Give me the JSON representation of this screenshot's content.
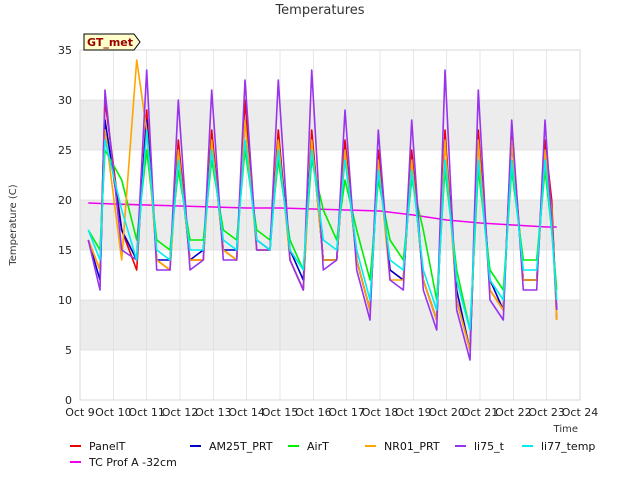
{
  "chart_data": {
    "type": "line",
    "title": "Temperatures",
    "xlabel": "Time",
    "ylabel": "Temperature (C)",
    "badge": "GT_met",
    "xlim": [
      9,
      24
    ],
    "ylim": [
      0,
      35
    ],
    "x_ticks": [
      {
        "v": 9,
        "label": "Oct 9"
      },
      {
        "v": 10,
        "label": "Oct 10"
      },
      {
        "v": 11,
        "label": "Oct 11"
      },
      {
        "v": 12,
        "label": "Oct 12"
      },
      {
        "v": 13,
        "label": "Oct 13"
      },
      {
        "v": 14,
        "label": "Oct 14"
      },
      {
        "v": 15,
        "label": "Oct 15"
      },
      {
        "v": 16,
        "label": "Oct 16"
      },
      {
        "v": 17,
        "label": "Oct 17"
      },
      {
        "v": 18,
        "label": "Oct 18"
      },
      {
        "v": 19,
        "label": "Oct 19"
      },
      {
        "v": 20,
        "label": "Oct 20"
      },
      {
        "v": 21,
        "label": "Oct 21"
      },
      {
        "v": 22,
        "label": "Oct 22"
      },
      {
        "v": 23,
        "label": "Oct 23"
      },
      {
        "v": 24,
        "label": "Oct 24"
      }
    ],
    "y_ticks": [
      0,
      5,
      10,
      15,
      20,
      25,
      30,
      35
    ],
    "shaded_bands": [
      [
        5,
        10
      ],
      [
        15,
        20
      ],
      [
        25,
        30
      ]
    ],
    "series": [
      {
        "name": "PanelT",
        "color": "#ee0000",
        "t": [
          9.25,
          9.6,
          9.75,
          10.25,
          10.7,
          11.0,
          11.3,
          11.7,
          11.95,
          12.3,
          12.7,
          12.95,
          13.3,
          13.7,
          13.95,
          14.3,
          14.7,
          14.95,
          15.3,
          15.7,
          15.95,
          16.3,
          16.7,
          16.95,
          17.3,
          17.7,
          17.95,
          18.3,
          18.7,
          18.95,
          19.3,
          19.7,
          19.95,
          20.3,
          20.7,
          20.95,
          21.3,
          21.7,
          21.95,
          22.3,
          22.7,
          22.95,
          23.15,
          23.3
        ],
        "y": [
          16,
          13,
          30,
          17,
          13,
          29,
          14,
          13,
          26,
          14,
          14,
          27,
          15,
          14,
          30,
          15,
          15,
          27,
          14,
          11,
          27,
          14,
          14,
          26,
          14,
          9,
          25,
          13,
          12,
          25,
          12,
          8,
          27,
          10,
          5,
          27,
          11,
          9,
          27,
          12,
          12,
          26,
          20,
          8
        ]
      },
      {
        "name": "TC Prof A -32cm",
        "color": "#ee00ee",
        "t": [
          9.25,
          10.0,
          11.0,
          12.0,
          13.0,
          14.0,
          15.0,
          16.0,
          17.0,
          18.0,
          19.0,
          20.0,
          21.0,
          22.0,
          23.0,
          23.3
        ],
        "y": [
          19.7,
          19.6,
          19.5,
          19.4,
          19.3,
          19.2,
          19.2,
          19.1,
          19.0,
          18.9,
          18.5,
          18.0,
          17.7,
          17.5,
          17.3,
          17.3
        ]
      },
      {
        "name": "AM25T_PRT",
        "color": "#0000cc",
        "t": [
          9.25,
          9.6,
          9.75,
          10.25,
          10.7,
          11.0,
          11.3,
          11.7,
          11.95,
          12.3,
          12.7,
          12.95,
          13.3,
          13.7,
          13.95,
          14.3,
          14.7,
          14.95,
          15.3,
          15.7,
          15.95,
          16.3,
          16.7,
          16.95,
          17.3,
          17.7,
          17.95,
          18.3,
          18.7,
          18.95,
          19.3,
          19.7,
          19.95,
          20.3,
          20.7,
          20.95,
          21.3,
          21.7,
          21.95,
          22.3,
          22.7,
          22.95,
          23.15,
          23.3
        ],
        "y": [
          16,
          12,
          28,
          17,
          14,
          28,
          14,
          14,
          25,
          14,
          15,
          26,
          15,
          15,
          28,
          16,
          15,
          26,
          15,
          12,
          26,
          14,
          14,
          25,
          14,
          9,
          24,
          13,
          12,
          24,
          12,
          8,
          26,
          11,
          5,
          26,
          12,
          9,
          26,
          12,
          12,
          25,
          19,
          9
        ]
      },
      {
        "name": "AirT",
        "color": "#00ee00",
        "t": [
          9.25,
          9.6,
          9.75,
          10.25,
          10.7,
          11.0,
          11.3,
          11.7,
          11.95,
          12.3,
          12.7,
          12.95,
          13.3,
          13.7,
          13.95,
          14.3,
          14.7,
          14.95,
          15.3,
          15.7,
          15.95,
          16.3,
          16.7,
          16.95,
          17.3,
          17.7,
          17.95,
          18.3,
          18.7,
          18.95,
          19.3,
          19.7,
          19.95,
          20.3,
          20.7,
          20.95,
          21.3,
          21.7,
          21.95,
          22.3,
          22.7,
          22.95,
          23.15,
          23.3
        ],
        "y": [
          17,
          15,
          25,
          22,
          16,
          25,
          16,
          15,
          23,
          16,
          16,
          24,
          17,
          16,
          25,
          17,
          16,
          24,
          16,
          13,
          24,
          19,
          16,
          22,
          17,
          12,
          22,
          16,
          14,
          22,
          17,
          10,
          23,
          13,
          7,
          23,
          13,
          11,
          23,
          14,
          14,
          23,
          17,
          11
        ]
      },
      {
        "name": "NR01_PRT",
        "color": "#ffa500",
        "t": [
          9.25,
          9.6,
          9.75,
          10.25,
          10.7,
          11.0,
          11.3,
          11.7,
          11.95,
          12.3,
          12.7,
          12.95,
          13.3,
          13.7,
          13.95,
          14.3,
          14.7,
          14.95,
          15.3,
          15.7,
          15.95,
          16.3,
          16.7,
          16.95,
          17.3,
          17.7,
          17.95,
          18.3,
          18.7,
          18.95,
          19.3,
          19.7,
          19.95,
          20.3,
          20.7,
          20.95,
          21.3,
          21.7,
          21.95,
          22.3,
          22.7,
          22.95,
          23.15,
          23.3
        ],
        "y": [
          16,
          13,
          27,
          14,
          34,
          27,
          14,
          13,
          25,
          14,
          14,
          26,
          15,
          14,
          28,
          15,
          15,
          26,
          14,
          11,
          26,
          14,
          14,
          25,
          14,
          9,
          24,
          12,
          12,
          24,
          12,
          8,
          26,
          10,
          5,
          26,
          11,
          9,
          26,
          12,
          12,
          25,
          19,
          8
        ]
      },
      {
        "name": "li75_t",
        "color": "#9933ee",
        "t": [
          9.25,
          9.6,
          9.75,
          10.25,
          10.7,
          11.0,
          11.3,
          11.7,
          11.95,
          12.3,
          12.7,
          12.95,
          13.3,
          13.7,
          13.95,
          14.3,
          14.7,
          14.95,
          15.3,
          15.7,
          15.95,
          16.3,
          16.7,
          16.95,
          17.3,
          17.7,
          17.95,
          18.3,
          18.7,
          18.95,
          19.3,
          19.7,
          19.95,
          20.3,
          20.7,
          20.95,
          21.3,
          21.7,
          21.95,
          22.3,
          22.7,
          22.95,
          23.15,
          23.3
        ],
        "y": [
          16,
          11,
          31,
          15,
          14,
          33,
          13,
          13,
          30,
          13,
          14,
          31,
          14,
          14,
          32,
          15,
          15,
          32,
          14,
          11,
          33,
          13,
          14,
          29,
          13,
          8,
          27,
          12,
          11,
          28,
          11,
          7,
          33,
          9,
          4,
          31,
          10,
          8,
          28,
          11,
          11,
          28,
          18,
          9
        ]
      },
      {
        "name": "li77_temp",
        "color": "#00eeee",
        "t": [
          9.25,
          9.6,
          9.75,
          10.25,
          10.7,
          11.0,
          11.3,
          11.7,
          11.95,
          12.3,
          12.7,
          12.95,
          13.3,
          13.7,
          13.95,
          14.3,
          14.7,
          14.95,
          15.3,
          15.7,
          15.95,
          16.3,
          16.7,
          16.95,
          17.3,
          17.7,
          17.95,
          18.3,
          18.7,
          18.95,
          19.3,
          19.7,
          19.95,
          20.3,
          20.7,
          20.95,
          21.3,
          21.7,
          21.95,
          22.3,
          22.7,
          22.95,
          23.15,
          23.3
        ],
        "y": [
          17,
          14,
          26,
          19,
          14,
          27,
          15,
          14,
          24,
          15,
          15,
          25,
          16,
          15,
          26,
          16,
          15,
          25,
          15,
          13,
          25,
          16,
          15,
          24,
          15,
          10,
          23,
          14,
          13,
          23,
          13,
          9,
          24,
          12,
          7,
          24,
          12,
          10,
          24,
          13,
          13,
          24,
          17,
          10
        ]
      }
    ],
    "legend": [
      "PanelT",
      "AM25T_PRT",
      "AirT",
      "NR01_PRT",
      "li75_t",
      "li77_temp",
      "TC Prof A -32cm"
    ],
    "legend_placement": "bottom",
    "grid": true
  }
}
